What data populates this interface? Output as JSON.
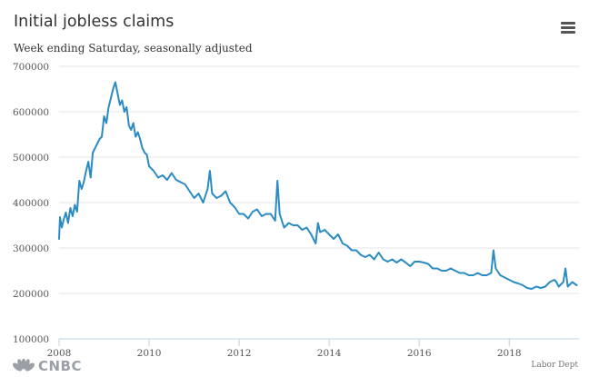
{
  "header": {
    "title": "Initial jobless claims",
    "subtitle": "Week ending Saturday, seasonally adjusted",
    "menu_icon": "hamburger-menu-icon"
  },
  "footer": {
    "logo_text": "CNBC",
    "credit": "Labor Dept"
  },
  "colors": {
    "line": "#2b8cc4",
    "grid": "#e6e6e6",
    "axis": "#c0d0e0"
  },
  "chart_data": {
    "type": "line",
    "title": "Initial jobless claims",
    "subtitle": "Week ending Saturday, seasonally adjusted",
    "xlabel": "",
    "ylabel": "",
    "xlim": [
      2008.0,
      2019.55
    ],
    "ylim": [
      100000,
      700000
    ],
    "x_ticks": [
      "2008",
      "2010",
      "2012",
      "2014",
      "2016",
      "2018"
    ],
    "x_tick_values": [
      2008,
      2010,
      2012,
      2014,
      2016,
      2018
    ],
    "y_ticks": [
      "100000",
      "200000",
      "300000",
      "400000",
      "500000",
      "600000",
      "700000"
    ],
    "y_tick_values": [
      100000,
      200000,
      300000,
      400000,
      500000,
      600000,
      700000
    ],
    "grid": true,
    "legend": "none",
    "series": [
      {
        "x": [
          2008.0,
          2008.02,
          2008.06,
          2008.1,
          2008.15,
          2008.2,
          2008.25,
          2008.3,
          2008.35,
          2008.4,
          2008.45,
          2008.5,
          2008.55,
          2008.6,
          2008.65,
          2008.7,
          2008.75,
          2008.8,
          2008.85,
          2008.9,
          2008.95,
          2009.0,
          2009.05,
          2009.1,
          2009.15,
          2009.2,
          2009.25,
          2009.3,
          2009.35,
          2009.4,
          2009.45,
          2009.5,
          2009.55,
          2009.6,
          2009.65,
          2009.7,
          2009.75,
          2009.8,
          2009.85,
          2009.9,
          2009.95,
          2010.0,
          2010.1,
          2010.2,
          2010.3,
          2010.4,
          2010.5,
          2010.6,
          2010.7,
          2010.8,
          2010.9,
          2011.0,
          2011.1,
          2011.2,
          2011.3,
          2011.35,
          2011.4,
          2011.5,
          2011.6,
          2011.7,
          2011.8,
          2011.9,
          2012.0,
          2012.1,
          2012.2,
          2012.3,
          2012.4,
          2012.5,
          2012.6,
          2012.7,
          2012.8,
          2012.85,
          2012.9,
          2012.95,
          2013.0,
          2013.1,
          2013.2,
          2013.3,
          2013.4,
          2013.5,
          2013.6,
          2013.7,
          2013.75,
          2013.8,
          2013.9,
          2014.0,
          2014.1,
          2014.2,
          2014.3,
          2014.4,
          2014.5,
          2014.6,
          2014.7,
          2014.8,
          2014.9,
          2015.0,
          2015.1,
          2015.2,
          2015.3,
          2015.4,
          2015.5,
          2015.6,
          2015.7,
          2015.8,
          2015.9,
          2016.0,
          2016.1,
          2016.2,
          2016.3,
          2016.4,
          2016.5,
          2016.6,
          2016.7,
          2016.8,
          2016.9,
          2017.0,
          2017.1,
          2017.2,
          2017.3,
          2017.4,
          2017.5,
          2017.6,
          2017.65,
          2017.7,
          2017.8,
          2017.9,
          2018.0,
          2018.1,
          2018.2,
          2018.3,
          2018.4,
          2018.5,
          2018.6,
          2018.7,
          2018.8,
          2018.9,
          2019.0,
          2019.05,
          2019.1,
          2019.2,
          2019.25,
          2019.3,
          2019.4,
          2019.5
        ],
        "values": [
          320000,
          368000,
          345000,
          362000,
          378000,
          355000,
          388000,
          370000,
          395000,
          380000,
          448000,
          430000,
          445000,
          470000,
          490000,
          455000,
          510000,
          520000,
          530000,
          540000,
          545000,
          590000,
          575000,
          610000,
          630000,
          650000,
          665000,
          640000,
          615000,
          625000,
          600000,
          610000,
          570000,
          560000,
          575000,
          545000,
          555000,
          540000,
          520000,
          510000,
          505000,
          480000,
          470000,
          455000,
          460000,
          450000,
          465000,
          450000,
          445000,
          440000,
          425000,
          410000,
          420000,
          400000,
          430000,
          470000,
          420000,
          410000,
          415000,
          425000,
          400000,
          390000,
          375000,
          375000,
          365000,
          380000,
          385000,
          370000,
          375000,
          375000,
          360000,
          448000,
          375000,
          360000,
          345000,
          355000,
          350000,
          350000,
          340000,
          345000,
          330000,
          310000,
          355000,
          335000,
          340000,
          330000,
          320000,
          330000,
          310000,
          305000,
          295000,
          295000,
          285000,
          280000,
          285000,
          275000,
          290000,
          275000,
          270000,
          275000,
          268000,
          275000,
          268000,
          260000,
          270000,
          270000,
          268000,
          265000,
          255000,
          255000,
          250000,
          250000,
          255000,
          250000,
          245000,
          245000,
          240000,
          240000,
          245000,
          240000,
          240000,
          245000,
          295000,
          255000,
          240000,
          235000,
          230000,
          225000,
          222000,
          218000,
          212000,
          210000,
          215000,
          212000,
          215000,
          225000,
          230000,
          225000,
          215000,
          225000,
          255000,
          215000,
          225000,
          218000
        ]
      }
    ]
  }
}
